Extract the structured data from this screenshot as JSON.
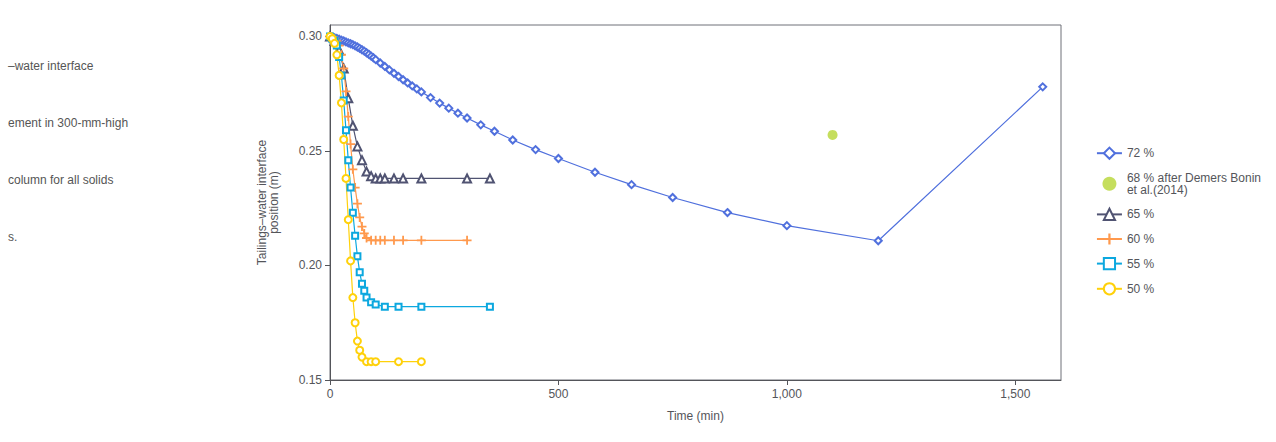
{
  "chart_data": {
    "type": "line",
    "xlabel": "Time (min)",
    "ylabel": "Tailings–water interface\nposition (m)",
    "annotations": [
      "–water interface",
      "ement in 300-mm-high",
      "column for all solids",
      "s."
    ],
    "xlim": [
      0,
      1600
    ],
    "ylim": [
      0.15,
      0.305
    ],
    "xticks": [
      0,
      500,
      {
        "value": 1000,
        "label": "1,000"
      },
      {
        "value": 1500,
        "label": "1,500"
      }
    ],
    "yticks": [
      0.15,
      {
        "value": 0.2,
        "label": "0.20"
      },
      0.25,
      {
        "value": 0.3,
        "label": "0.30"
      }
    ],
    "grid": false,
    "legend": "right",
    "series": [
      {
        "name": "72 %",
        "type": "line",
        "marker": "open_diamond",
        "x": [
          0,
          5,
          10,
          15,
          20,
          25,
          30,
          35,
          40,
          45,
          50,
          55,
          60,
          65,
          70,
          75,
          80,
          85,
          90,
          95,
          100,
          110,
          120,
          130,
          140,
          150,
          160,
          170,
          180,
          190,
          200,
          220,
          240,
          260,
          280,
          300,
          330,
          360,
          400,
          450,
          500,
          580,
          660,
          750,
          870,
          1000,
          1200,
          1560
        ],
        "values": [
          0.3,
          0.2997,
          0.2994,
          0.2991,
          0.2988,
          0.2984,
          0.298,
          0.2976,
          0.2972,
          0.2968,
          0.2964,
          0.2959,
          0.2954,
          0.2948,
          0.2942,
          0.2936,
          0.2929,
          0.2922,
          0.2914,
          0.2907,
          0.2899,
          0.2884,
          0.2869,
          0.2854,
          0.2839,
          0.2825,
          0.2811,
          0.2797,
          0.2784,
          0.2771,
          0.2758,
          0.2733,
          0.2709,
          0.2687,
          0.2665,
          0.2644,
          0.2614,
          0.2586,
          0.2548,
          0.2506,
          0.2467,
          0.2407,
          0.2353,
          0.2297,
          0.2231,
          0.2174,
          0.2108,
          0.278
        ]
      },
      {
        "name": "68 % after Demers Bonin\net al.(2014)",
        "type": "scatter",
        "marker": "circle",
        "x": [
          1100
        ],
        "values": [
          0.257
        ]
      },
      {
        "name": "65 %",
        "type": "line",
        "marker": "open_triangle",
        "x": [
          0,
          10,
          20,
          30,
          40,
          50,
          60,
          70,
          80,
          90,
          100,
          110,
          120,
          140,
          160,
          200,
          300,
          350
        ],
        "values": [
          0.3,
          0.298,
          0.294,
          0.286,
          0.273,
          0.261,
          0.252,
          0.246,
          0.241,
          0.239,
          0.238,
          0.238,
          0.238,
          0.238,
          0.238,
          0.238,
          0.238,
          0.238
        ]
      },
      {
        "name": "60 %",
        "type": "line",
        "marker": "plus",
        "x": [
          0,
          5,
          10,
          15,
          20,
          25,
          30,
          35,
          40,
          45,
          50,
          55,
          60,
          65,
          70,
          75,
          80,
          90,
          100,
          110,
          120,
          140,
          160,
          200,
          300
        ],
        "values": [
          0.3,
          0.2995,
          0.299,
          0.298,
          0.296,
          0.292,
          0.286,
          0.276,
          0.265,
          0.253,
          0.242,
          0.234,
          0.227,
          0.221,
          0.217,
          0.214,
          0.212,
          0.211,
          0.211,
          0.211,
          0.211,
          0.211,
          0.211,
          0.211,
          0.211
        ]
      },
      {
        "name": "55 %",
        "type": "line",
        "marker": "open_square",
        "x": [
          0,
          5,
          10,
          15,
          20,
          25,
          30,
          35,
          40,
          45,
          50,
          55,
          60,
          65,
          70,
          75,
          80,
          90,
          100,
          120,
          150,
          200,
          350
        ],
        "values": [
          0.3,
          0.299,
          0.298,
          0.296,
          0.291,
          0.283,
          0.272,
          0.259,
          0.246,
          0.234,
          0.223,
          0.213,
          0.204,
          0.197,
          0.192,
          0.189,
          0.186,
          0.184,
          0.183,
          0.182,
          0.182,
          0.182,
          0.182
        ]
      },
      {
        "name": "50 %",
        "type": "line",
        "marker": "open_circle",
        "x": [
          0,
          5,
          10,
          15,
          20,
          25,
          30,
          35,
          40,
          45,
          50,
          55,
          60,
          65,
          70,
          80,
          90,
          100,
          150,
          200
        ],
        "values": [
          0.3,
          0.299,
          0.297,
          0.292,
          0.283,
          0.271,
          0.255,
          0.238,
          0.22,
          0.202,
          0.186,
          0.175,
          0.167,
          0.163,
          0.16,
          0.158,
          0.158,
          0.158,
          0.158,
          0.158
        ]
      }
    ]
  }
}
